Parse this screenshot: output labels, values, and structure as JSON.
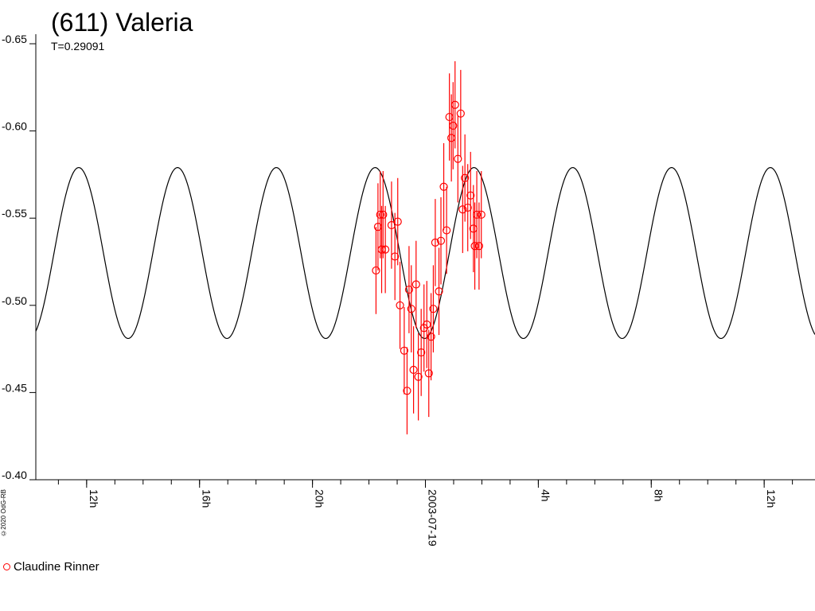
{
  "title": "(611) Valeria",
  "subtitle": "T=0.29091",
  "copyright": "©2020 OdG-RB",
  "legend": [
    {
      "label": "Claudine Rinner",
      "color": "#ff0000"
    }
  ],
  "chart_data": {
    "type": "scatter",
    "title": "(611) Valeria",
    "subtitle": "T=0.29091",
    "x_axis": {
      "unit": "hours relative to 2003-07-19 00:00",
      "range": [
        -13.8,
        13.8
      ],
      "tick_labels": [
        {
          "x": -12,
          "label": "12h"
        },
        {
          "x": -8,
          "label": "16h"
        },
        {
          "x": -4,
          "label": "20h"
        },
        {
          "x": 0,
          "label": "2003-07-19"
        },
        {
          "x": 4,
          "label": "4h"
        },
        {
          "x": 8,
          "label": "8h"
        },
        {
          "x": 12,
          "label": "12h"
        }
      ]
    },
    "y_axis": {
      "range": [
        -0.65,
        -0.4
      ],
      "inverted": true,
      "tick_labels": [
        "-0.65",
        "-0.60",
        "-0.55",
        "-0.50",
        "-0.45",
        "-0.40"
      ],
      "tick_values": [
        -0.65,
        -0.6,
        -0.55,
        -0.5,
        -0.45,
        -0.4
      ]
    },
    "model_curve": {
      "color": "#000000",
      "period_hours": 3.5,
      "amplitude": 0.049,
      "mean": -0.53,
      "peak_brightest_at_hours": -12.28
    },
    "series": [
      {
        "name": "Claudine Rinner",
        "color": "#ff0000",
        "marker": "circle",
        "points": [
          {
            "x": -1.75,
            "y": -0.52,
            "err": 0.025
          },
          {
            "x": -1.68,
            "y": -0.545,
            "err": 0.025
          },
          {
            "x": -1.6,
            "y": -0.552,
            "err": 0.025
          },
          {
            "x": -1.55,
            "y": -0.532,
            "err": 0.025
          },
          {
            "x": -1.5,
            "y": -0.552,
            "err": 0.025
          },
          {
            "x": -1.42,
            "y": -0.532,
            "err": 0.025
          },
          {
            "x": -1.2,
            "y": -0.546,
            "err": 0.025
          },
          {
            "x": -1.08,
            "y": -0.528,
            "err": 0.025
          },
          {
            "x": -0.98,
            "y": -0.548,
            "err": 0.025
          },
          {
            "x": -0.9,
            "y": -0.5,
            "err": 0.025
          },
          {
            "x": -0.75,
            "y": -0.474,
            "err": 0.025
          },
          {
            "x": -0.65,
            "y": -0.451,
            "err": 0.025
          },
          {
            "x": -0.58,
            "y": -0.509,
            "err": 0.025
          },
          {
            "x": -0.5,
            "y": -0.498,
            "err": 0.025
          },
          {
            "x": -0.42,
            "y": -0.463,
            "err": 0.025
          },
          {
            "x": -0.33,
            "y": -0.512,
            "err": 0.025
          },
          {
            "x": -0.25,
            "y": -0.459,
            "err": 0.025
          },
          {
            "x": -0.15,
            "y": -0.473,
            "err": 0.025
          },
          {
            "x": -0.05,
            "y": -0.487,
            "err": 0.025
          },
          {
            "x": 0.05,
            "y": -0.489,
            "err": 0.025
          },
          {
            "x": 0.12,
            "y": -0.461,
            "err": 0.025
          },
          {
            "x": 0.2,
            "y": -0.482,
            "err": 0.025
          },
          {
            "x": 0.28,
            "y": -0.498,
            "err": 0.025
          },
          {
            "x": 0.35,
            "y": -0.536,
            "err": 0.025
          },
          {
            "x": 0.48,
            "y": -0.508,
            "err": 0.025
          },
          {
            "x": 0.55,
            "y": -0.537,
            "err": 0.025
          },
          {
            "x": 0.65,
            "y": -0.568,
            "err": 0.025
          },
          {
            "x": 0.75,
            "y": -0.543,
            "err": 0.025
          },
          {
            "x": 0.85,
            "y": -0.608,
            "err": 0.025
          },
          {
            "x": 0.92,
            "y": -0.596,
            "err": 0.025
          },
          {
            "x": 0.98,
            "y": -0.603,
            "err": 0.025
          },
          {
            "x": 1.05,
            "y": -0.615,
            "err": 0.025
          },
          {
            "x": 1.15,
            "y": -0.584,
            "err": 0.025
          },
          {
            "x": 1.25,
            "y": -0.61,
            "err": 0.025
          },
          {
            "x": 1.32,
            "y": -0.555,
            "err": 0.025
          },
          {
            "x": 1.4,
            "y": -0.573,
            "err": 0.025
          },
          {
            "x": 1.5,
            "y": -0.556,
            "err": 0.025
          },
          {
            "x": 1.6,
            "y": -0.563,
            "err": 0.025
          },
          {
            "x": 1.7,
            "y": -0.544,
            "err": 0.025
          },
          {
            "x": 1.75,
            "y": -0.534,
            "err": 0.025
          },
          {
            "x": 1.82,
            "y": -0.552,
            "err": 0.025
          },
          {
            "x": 1.9,
            "y": -0.534,
            "err": 0.025
          },
          {
            "x": 1.98,
            "y": -0.552,
            "err": 0.025
          }
        ]
      }
    ]
  }
}
